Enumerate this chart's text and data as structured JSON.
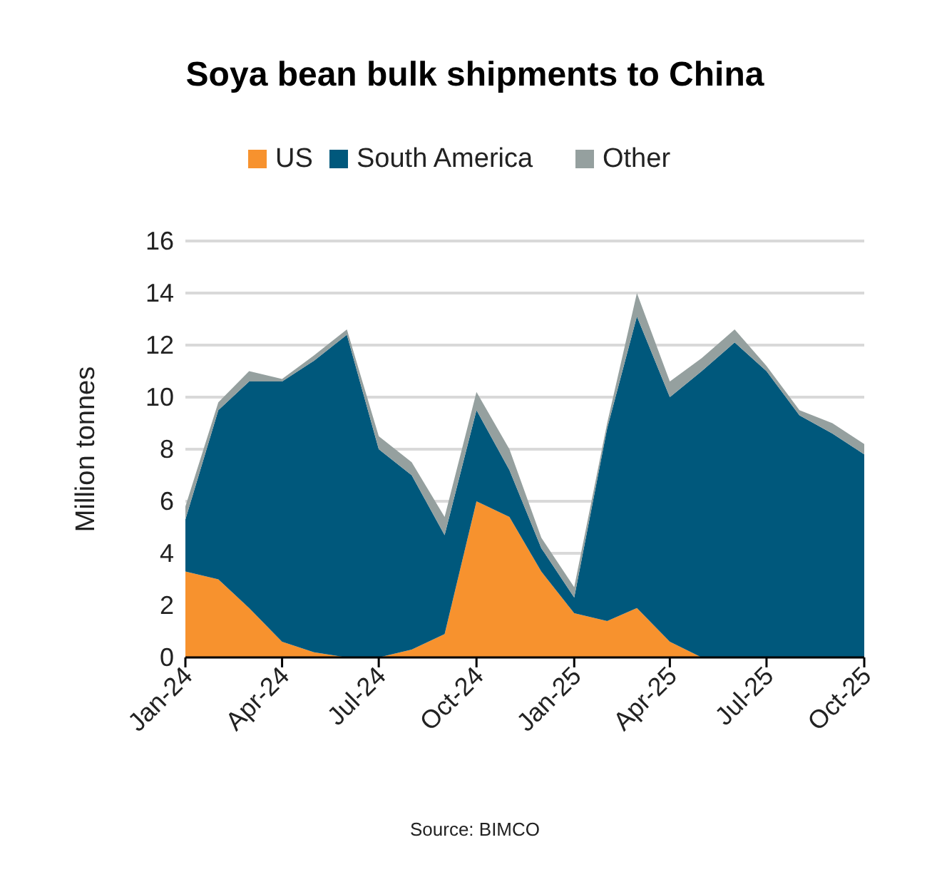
{
  "chart_data": {
    "type": "area",
    "stacked": true,
    "title": "Soya bean bulk shipments to China",
    "ylabel": "Million tonnes",
    "x": [
      "2024-01",
      "2024-02",
      "2024-03",
      "2024-04",
      "2024-05",
      "2024-06",
      "2024-07",
      "2024-08",
      "2024-09",
      "2024-10",
      "2024-11",
      "2024-12",
      "2025-01",
      "2025-02",
      "2025-03",
      "2025-04",
      "2025-05",
      "2025-06",
      "2025-07",
      "2025-08",
      "2025-09",
      "2025-10"
    ],
    "series": [
      {
        "name": "US",
        "color": "#f7922e",
        "values": [
          3.3,
          3.0,
          1.9,
          0.6,
          0.2,
          0,
          0,
          0.3,
          0.9,
          6.0,
          5.4,
          3.3,
          1.7,
          1.4,
          1.9,
          0.6,
          0,
          0,
          0,
          0,
          0,
          0
        ]
      },
      {
        "name": "South America",
        "color": "#00587c",
        "values": [
          2.0,
          6.5,
          8.7,
          10.0,
          11.2,
          12.4,
          8.0,
          6.7,
          3.8,
          3.5,
          1.8,
          0.9,
          0.6,
          7.4,
          11.2,
          9.4,
          11.0,
          12.1,
          11.0,
          9.3,
          8.6,
          7.8
        ]
      },
      {
        "name": "Other",
        "color": "#95a09f",
        "values": [
          0.5,
          0.3,
          0.4,
          0.1,
          0.2,
          0.2,
          0.5,
          0.5,
          0.7,
          0.7,
          0.8,
          0.4,
          0.4,
          0.2,
          0.9,
          0.6,
          0.5,
          0.5,
          0.2,
          0.2,
          0.4,
          0.4
        ]
      }
    ],
    "xlim": [
      "2024-01",
      "2025-10"
    ],
    "xticks": [
      {
        "value": "2024-01",
        "label": "Jan-24"
      },
      {
        "value": "2024-04",
        "label": "Apr-24"
      },
      {
        "value": "2024-07",
        "label": "Jul-24"
      },
      {
        "value": "2024-10",
        "label": "Oct-24"
      },
      {
        "value": "2025-01",
        "label": "Jan-25"
      },
      {
        "value": "2025-04",
        "label": "Apr-25"
      },
      {
        "value": "2025-07",
        "label": "Jul-25"
      },
      {
        "value": "2025-10",
        "label": "Oct-25"
      }
    ],
    "ylim": [
      0,
      16
    ],
    "yticks": [
      0,
      2,
      4,
      6,
      8,
      10,
      12,
      14,
      16
    ],
    "grid": "y",
    "legend": "top",
    "annotations": [
      "Source: BIMCO"
    ]
  }
}
